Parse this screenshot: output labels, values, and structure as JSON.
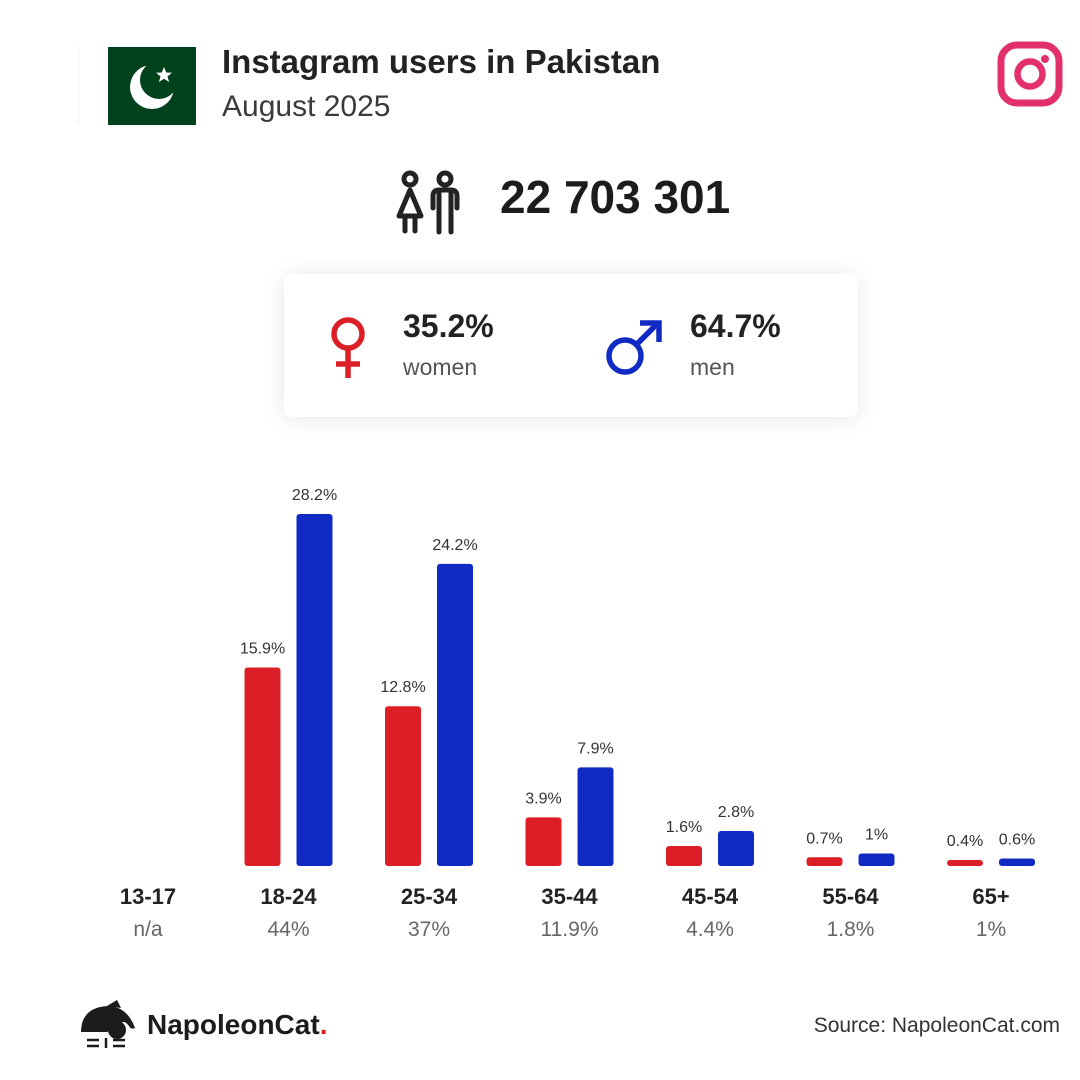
{
  "header": {
    "title": "Instagram users in Pakistan",
    "subtitle": "August 2025"
  },
  "total_users": "22 703 301",
  "gender": {
    "women_pct": "35.2%",
    "women_label": "women",
    "men_pct": "64.7%",
    "men_label": "men"
  },
  "colors": {
    "women": "#dc1f26",
    "men": "#102bc3",
    "flag_green": "#01411c",
    "instagram": "#e1306c"
  },
  "icons": {
    "flag": "pakistan-flag-icon",
    "platform": "instagram-icon",
    "users": "users-icon",
    "women": "female-symbol-icon",
    "men": "male-symbol-icon",
    "brand": "napoleoncat-logo-icon"
  },
  "chart_data": {
    "type": "bar",
    "categories": [
      "13-17",
      "18-24",
      "25-34",
      "35-44",
      "45-54",
      "55-64",
      "65+"
    ],
    "category_totals": [
      "n/a",
      "44%",
      "37%",
      "11.9%",
      "4.4%",
      "1.8%",
      "1%"
    ],
    "series": [
      {
        "name": "women",
        "values": [
          null,
          15.9,
          12.8,
          3.9,
          1.6,
          0.7,
          0.4
        ],
        "labels": [
          "",
          "15.9%",
          "12.8%",
          "3.9%",
          "1.6%",
          "0.7%",
          "0.4%"
        ]
      },
      {
        "name": "men",
        "values": [
          null,
          28.2,
          24.2,
          7.9,
          2.8,
          1,
          0.6
        ],
        "labels": [
          "",
          "28.2%",
          "24.2%",
          "7.9%",
          "2.8%",
          "1%",
          "0.6%"
        ]
      }
    ],
    "ylim": [
      0,
      28.2
    ],
    "grid": false
  },
  "footer": {
    "brand": "NapoleonCat",
    "brand_dot": ".",
    "source": "Source: NapoleonCat.com"
  }
}
